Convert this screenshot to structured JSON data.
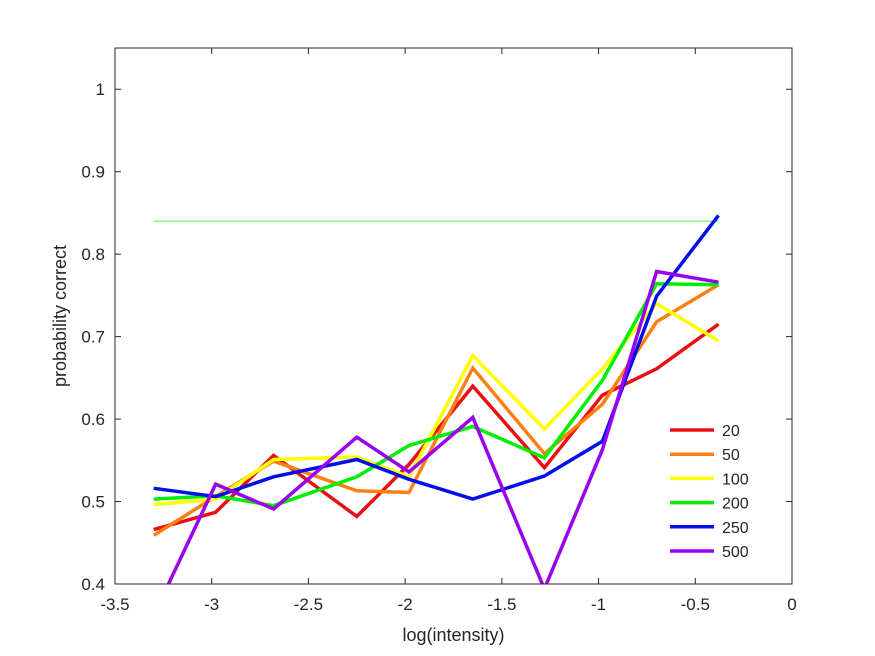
{
  "chart_data": {
    "type": "line",
    "title": "",
    "xlabel": "log(intensity)",
    "ylabel": "probability correct",
    "xlim": [
      -3.5,
      0
    ],
    "ylim": [
      0.4,
      1.05
    ],
    "xticks": [
      -3.5,
      -3,
      -2.5,
      -2,
      -1.5,
      -1,
      -0.5,
      0
    ],
    "xtick_labels": [
      "-3.5",
      "-3",
      "-2.5",
      "-2",
      "-1.5",
      "-1",
      "-0.5",
      "0"
    ],
    "yticks": [
      0.4,
      0.5,
      0.6,
      0.7,
      0.8,
      0.9,
      1
    ],
    "ytick_labels": [
      "0.4",
      "0.5",
      "0.6",
      "0.7",
      "0.8",
      "0.9",
      "1"
    ],
    "grid": false,
    "legend_position": "bottom-right",
    "x": [
      -3.3,
      -2.98,
      -2.68,
      -2.25,
      -1.98,
      -1.65,
      -1.28,
      -0.98,
      -0.7,
      -0.38
    ],
    "reference_line": {
      "y": 0.84,
      "x_range": [
        -3.3,
        -0.38
      ],
      "color": "#66ee66"
    },
    "series": [
      {
        "name": "20",
        "color": "#e81010",
        "values": [
          0.466,
          0.487,
          0.556,
          0.482,
          0.545,
          0.64,
          0.541,
          0.629,
          0.661,
          0.715
        ]
      },
      {
        "name": "50",
        "color": "#ff8010",
        "values": [
          0.459,
          0.506,
          0.549,
          0.513,
          0.511,
          0.662,
          0.558,
          0.618,
          0.718,
          0.763
        ]
      },
      {
        "name": "100",
        "color": "#ffff00",
        "values": [
          0.496,
          0.503,
          0.551,
          0.554,
          0.53,
          0.677,
          0.588,
          0.661,
          0.74,
          0.695
        ]
      },
      {
        "name": "200",
        "color": "#00ee00",
        "values": [
          0.503,
          0.507,
          0.495,
          0.53,
          0.568,
          0.591,
          0.553,
          0.647,
          0.764,
          0.763
        ]
      },
      {
        "name": "250",
        "color": "#0010e8",
        "values": [
          0.516,
          0.506,
          0.53,
          0.551,
          0.527,
          0.503,
          0.531,
          0.573,
          0.749,
          0.847
        ]
      },
      {
        "name": "500",
        "color": "#9900ee",
        "values": [
          0.362,
          0.521,
          0.491,
          0.578,
          0.536,
          0.602,
          0.394,
          0.563,
          0.779,
          0.766
        ]
      }
    ]
  }
}
